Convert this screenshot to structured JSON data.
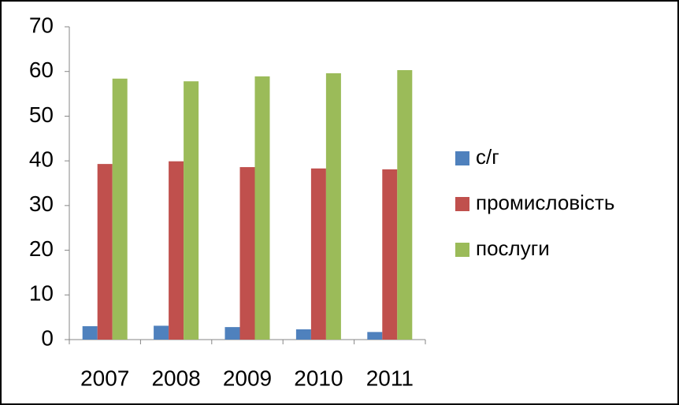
{
  "chart_data": {
    "type": "bar",
    "categories": [
      "2007",
      "2008",
      "2009",
      "2010",
      "2011"
    ],
    "series": [
      {
        "name": "с/г",
        "color": "#4f81bd",
        "values": [
          3.0,
          3.1,
          2.8,
          2.3,
          1.7
        ]
      },
      {
        "name": "промисловість",
        "color": "#c0504d",
        "values": [
          39.3,
          39.9,
          38.6,
          38.3,
          38.1
        ]
      },
      {
        "name": "послуги",
        "color": "#9bbb59",
        "values": [
          58.4,
          57.8,
          58.9,
          59.6,
          60.3
        ]
      }
    ],
    "ylim": [
      0,
      70
    ],
    "yticks": [
      0,
      10,
      20,
      30,
      40,
      50,
      60,
      70
    ],
    "grid": false,
    "legend": "right"
  }
}
